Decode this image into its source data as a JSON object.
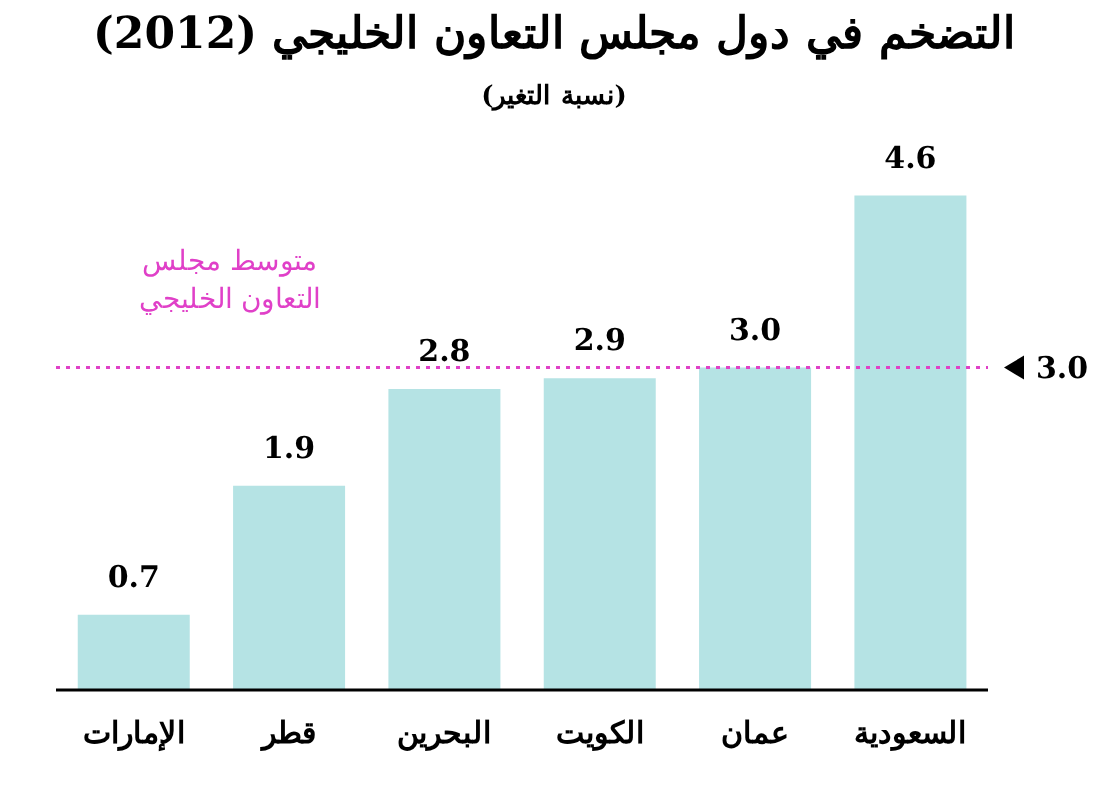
{
  "chart_data": {
    "type": "bar",
    "title": "التضخم في دول مجلس التعاون الخليجي (2012)",
    "subtitle": "(نسبة التغير)",
    "categories": [
      "الإمارات",
      "قطر",
      "البحرين",
      "الكويت",
      "عمان",
      "السعودية"
    ],
    "values": [
      0.7,
      1.9,
      2.8,
      2.9,
      3.0,
      4.6
    ],
    "value_labels": [
      "0.7",
      "1.9",
      "2.8",
      "2.9",
      "3.0",
      "4.6"
    ],
    "color": "#b5e3e4",
    "ref_lines": [
      {
        "axis": "y",
        "value": 3.0,
        "label": "3.0",
        "color": "#e040c8",
        "line_style": "dotted"
      }
    ],
    "annotations": [
      "متوسط مجلس التعاون الخليجي"
    ]
  }
}
